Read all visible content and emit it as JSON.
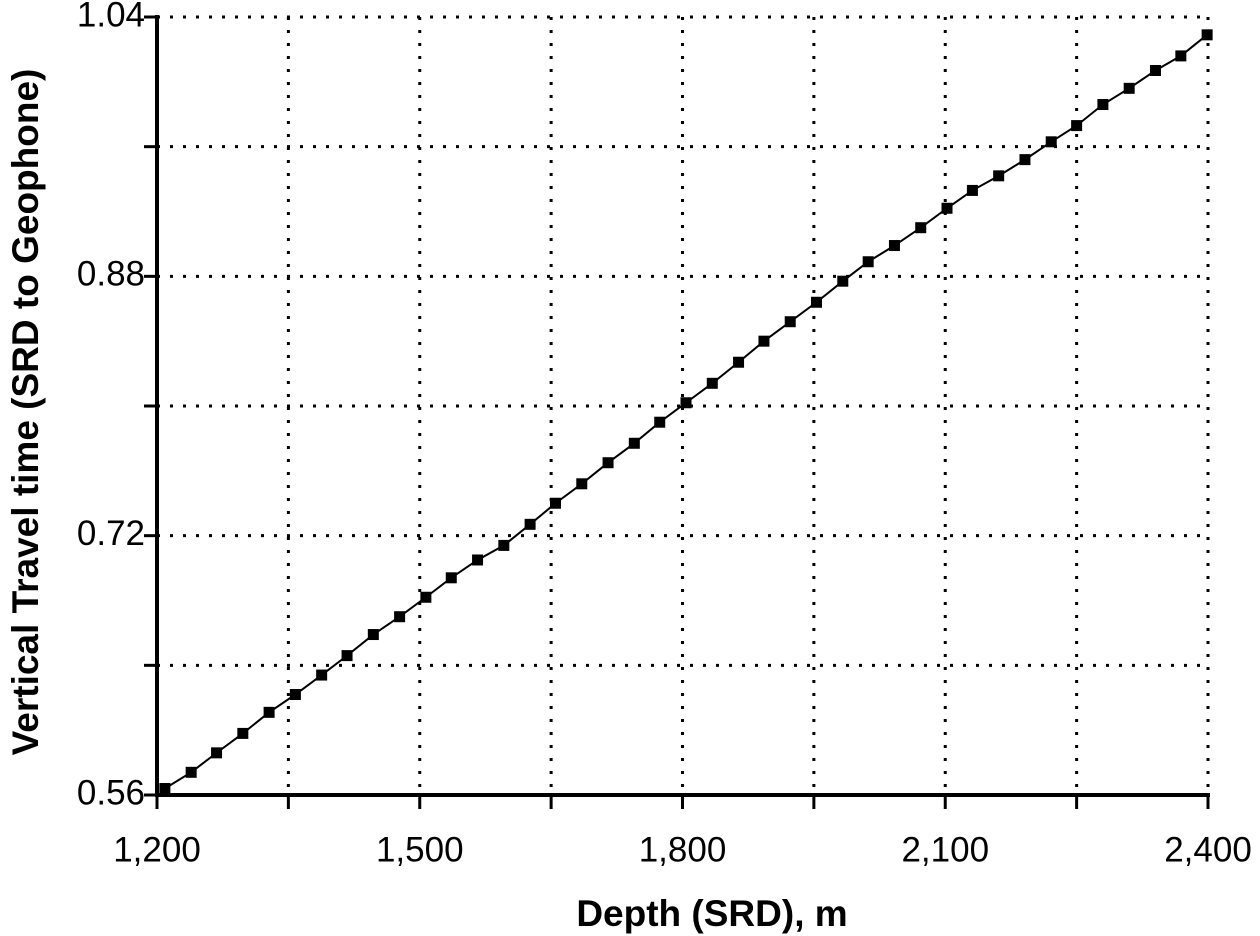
{
  "chart_data": {
    "type": "line",
    "x_label": "Depth (SRD), m",
    "y_label": "Vertical Travel time (SRD to Geophone)",
    "x": [
      1209,
      1239,
      1268,
      1298,
      1328,
      1358,
      1388,
      1417,
      1447,
      1477,
      1507,
      1536,
      1566,
      1596,
      1626,
      1655,
      1685,
      1715,
      1745,
      1774,
      1804,
      1834,
      1864,
      1893,
      1923,
      1953,
      1983,
      2012,
      2042,
      2072,
      2102,
      2131,
      2161,
      2191,
      2221,
      2250,
      2280,
      2310,
      2340,
      2369,
      2399
    ],
    "series": [
      {
        "color": "#000000",
        "values": [
          0.564,
          0.574,
          0.586,
          0.598,
          0.611,
          0.622,
          0.634,
          0.646,
          0.659,
          0.67,
          0.682,
          0.694,
          0.705,
          0.714,
          0.727,
          0.74,
          0.752,
          0.765,
          0.777,
          0.79,
          0.802,
          0.814,
          0.827,
          0.84,
          0.852,
          0.864,
          0.877,
          0.889,
          0.899,
          0.91,
          0.922,
          0.933,
          0.942,
          0.952,
          0.963,
          0.973,
          0.986,
          0.996,
          1.007,
          1.016,
          1.029
        ]
      }
    ],
    "xlim": [
      1200,
      2400
    ],
    "ylim": [
      0.56,
      1.04
    ],
    "xticks": [
      {
        "value": 1200,
        "label": "1,200"
      },
      {
        "value": 1500,
        "label": "1,500"
      },
      {
        "value": 1800,
        "label": "1,800"
      },
      {
        "value": 2100,
        "label": "2,100"
      },
      {
        "value": 2400,
        "label": "2,400"
      }
    ],
    "xminorticks": [
      1350,
      1650,
      1950,
      2250
    ],
    "yticks": [
      0.56,
      0.72,
      0.88,
      1.04
    ],
    "yminorticks": [
      0.64,
      0.8,
      0.96
    ],
    "grid": true,
    "marker": "square"
  }
}
